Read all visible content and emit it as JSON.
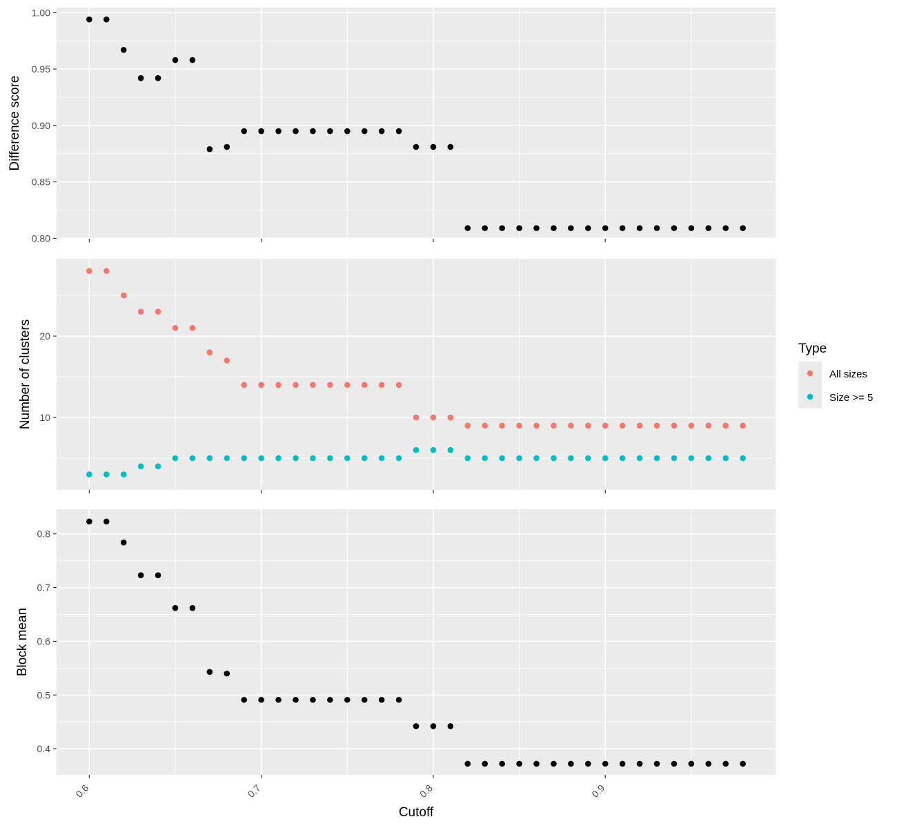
{
  "chart_data": {
    "type": "scatter",
    "xlabel": "Cutoff",
    "xlim": [
      0.581,
      0.999
    ],
    "x_ticks": [
      0.6,
      0.7,
      0.8,
      0.9
    ],
    "x_tick_labels": [
      "0.6",
      "0.7",
      "0.8",
      "0.9"
    ],
    "x_tick_rotation": "45 degrees",
    "x": [
      0.6,
      0.61,
      0.62,
      0.63,
      0.64,
      0.65,
      0.66,
      0.67,
      0.68,
      0.69,
      0.7,
      0.71,
      0.72,
      0.73,
      0.74,
      0.75,
      0.76,
      0.77,
      0.78,
      0.79,
      0.8,
      0.81,
      0.82,
      0.83,
      0.84,
      0.85,
      0.86,
      0.87,
      0.88,
      0.89,
      0.9,
      0.91,
      0.92,
      0.93,
      0.94,
      0.95,
      0.96,
      0.97,
      0.98
    ],
    "panels": [
      {
        "id": "difference",
        "ylabel": "Difference score",
        "ylim": [
          0.7996,
          1.0045
        ],
        "y_ticks": [
          0.8,
          0.85,
          0.9,
          0.95,
          1.0
        ],
        "y_tick_labels": [
          "0.80",
          "0.85",
          "0.90",
          "0.95",
          "1.00"
        ],
        "series": [
          {
            "name": "Difference score",
            "color": "#000000",
            "values": [
              0.994,
              0.994,
              0.967,
              0.942,
              0.942,
              0.958,
              0.958,
              0.879,
              0.881,
              0.895,
              0.895,
              0.895,
              0.895,
              0.895,
              0.895,
              0.895,
              0.895,
              0.895,
              0.895,
              0.881,
              0.881,
              0.881,
              0.809,
              0.809,
              0.809,
              0.809,
              0.809,
              0.809,
              0.809,
              0.809,
              0.809,
              0.809,
              0.809,
              0.809,
              0.809,
              0.809,
              0.809,
              0.809,
              0.809
            ]
          }
        ]
      },
      {
        "id": "clusters",
        "ylabel": "Number of clusters",
        "ylim": [
          1.1,
          29.5
        ],
        "y_ticks": [
          10,
          20
        ],
        "y_tick_labels": [
          "10",
          "20"
        ],
        "series": [
          {
            "name": "All sizes",
            "color": "#F8766D",
            "values": [
              28,
              28,
              25,
              23,
              23,
              21,
              21,
              18,
              17,
              14,
              14,
              14,
              14,
              14,
              14,
              14,
              14,
              14,
              14,
              10,
              10,
              10,
              9,
              9,
              9,
              9,
              9,
              9,
              9,
              9,
              9,
              9,
              9,
              9,
              9,
              9,
              9,
              9,
              9
            ]
          },
          {
            "name": "Size >= 5",
            "color": "#00BFC4",
            "values": [
              3,
              3,
              3,
              4,
              4,
              5,
              5,
              5,
              5,
              5,
              5,
              5,
              5,
              5,
              5,
              5,
              5,
              5,
              5,
              6,
              6,
              6,
              5,
              5,
              5,
              5,
              5,
              5,
              5,
              5,
              5,
              5,
              5,
              5,
              5,
              5,
              5,
              5,
              5
            ]
          }
        ]
      },
      {
        "id": "block",
        "ylabel": "Block mean",
        "ylim": [
          0.3513,
          0.8459
        ],
        "y_ticks": [
          0.4,
          0.5,
          0.6,
          0.7,
          0.8
        ],
        "y_tick_labels": [
          "0.4",
          "0.5",
          "0.6",
          "0.7",
          "0.8"
        ],
        "series": [
          {
            "name": "Block mean",
            "color": "#000000",
            "values": [
              0.823,
              0.823,
              0.784,
              0.723,
              0.723,
              0.662,
              0.662,
              0.543,
              0.54,
              0.491,
              0.491,
              0.491,
              0.491,
              0.491,
              0.491,
              0.491,
              0.491,
              0.491,
              0.491,
              0.442,
              0.442,
              0.442,
              0.372,
              0.372,
              0.372,
              0.372,
              0.372,
              0.372,
              0.372,
              0.372,
              0.372,
              0.372,
              0.372,
              0.372,
              0.372,
              0.372,
              0.372,
              0.372,
              0.372
            ]
          }
        ]
      }
    ],
    "legend": {
      "title": "Type",
      "placement": "right",
      "entries": [
        {
          "label": "All sizes",
          "color": "#F8766D"
        },
        {
          "label": "Size >= 5",
          "color": "#00BFC4"
        }
      ]
    }
  }
}
